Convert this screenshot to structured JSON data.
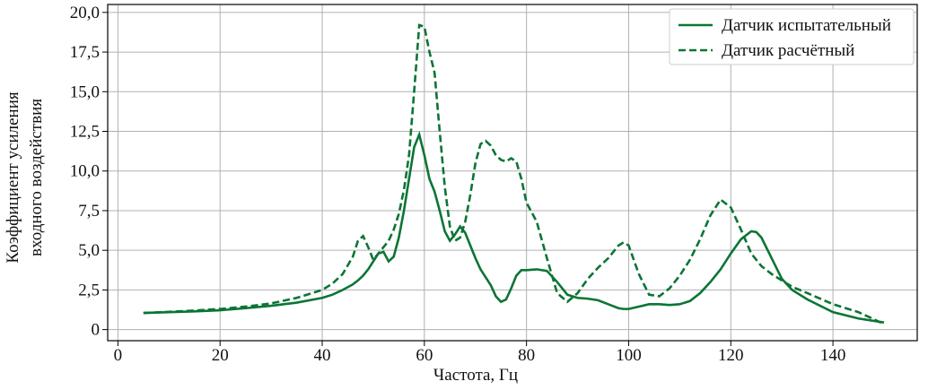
{
  "chart_data": {
    "type": "line",
    "x_label": "Частота, Гц",
    "y_label": [
      "Коэффициент усиления",
      "входного воздействия"
    ],
    "x": [
      5,
      10,
      15,
      20,
      25,
      30,
      35,
      40,
      42,
      44,
      46,
      47,
      48,
      49,
      50,
      51,
      52,
      53,
      54,
      55,
      56,
      57,
      58,
      59,
      60,
      61,
      62,
      63,
      64,
      65,
      66,
      67,
      68,
      69,
      70,
      71,
      72,
      73,
      74,
      75,
      76,
      77,
      78,
      79,
      80,
      82,
      84,
      86,
      88,
      90,
      92,
      94,
      96,
      98,
      99,
      100,
      102,
      104,
      106,
      108,
      110,
      112,
      114,
      116,
      118,
      120,
      122,
      124,
      125,
      126,
      128,
      130,
      132,
      135,
      140,
      145,
      150
    ],
    "series": [
      {
        "name": "Датчик испытательный",
        "color": "#0b7535",
        "dash": "solid",
        "values": [
          1.05,
          1.1,
          1.15,
          1.22,
          1.35,
          1.5,
          1.7,
          2.0,
          2.2,
          2.5,
          2.85,
          3.1,
          3.4,
          3.8,
          4.3,
          4.8,
          4.9,
          4.3,
          4.6,
          5.8,
          7.5,
          9.5,
          11.5,
          12.3,
          11.0,
          9.5,
          8.7,
          7.5,
          6.2,
          5.6,
          6.0,
          6.5,
          6.1,
          5.3,
          4.5,
          3.8,
          3.3,
          2.8,
          2.1,
          1.75,
          1.9,
          2.6,
          3.4,
          3.75,
          3.75,
          3.8,
          3.7,
          3.0,
          2.2,
          2.0,
          1.95,
          1.85,
          1.6,
          1.35,
          1.3,
          1.3,
          1.45,
          1.6,
          1.6,
          1.55,
          1.6,
          1.8,
          2.3,
          3.0,
          3.8,
          4.8,
          5.7,
          6.2,
          6.15,
          5.8,
          4.5,
          3.2,
          2.5,
          1.9,
          1.1,
          0.7,
          0.45
        ]
      },
      {
        "name": "Датчик расчётный",
        "color": "#0b7535",
        "dash": "dashed",
        "values": [
          1.05,
          1.12,
          1.2,
          1.3,
          1.45,
          1.65,
          2.0,
          2.5,
          2.9,
          3.5,
          4.6,
          5.6,
          5.9,
          5.2,
          4.4,
          4.8,
          5.2,
          5.6,
          6.3,
          7.3,
          8.8,
          11.0,
          15.0,
          19.2,
          19.1,
          17.5,
          16.2,
          12.5,
          9.0,
          6.5,
          5.6,
          5.8,
          6.8,
          8.5,
          10.5,
          11.7,
          11.9,
          11.6,
          11.0,
          10.7,
          10.6,
          10.8,
          10.6,
          9.5,
          8.0,
          6.8,
          4.5,
          2.3,
          1.75,
          2.3,
          3.2,
          3.9,
          4.5,
          5.3,
          5.5,
          5.3,
          3.5,
          2.2,
          2.1,
          2.6,
          3.4,
          4.4,
          5.7,
          7.2,
          8.2,
          7.7,
          6.3,
          4.8,
          4.4,
          4.0,
          3.5,
          3.1,
          2.7,
          2.3,
          1.6,
          1.1,
          0.35
        ]
      }
    ],
    "xlim": [
      -2,
      156.5
    ],
    "ylim": [
      -0.7,
      20.5
    ],
    "xticks": [
      0,
      20,
      40,
      60,
      80,
      100,
      120,
      140
    ],
    "yticks": [
      0,
      {
        "value": 2.5,
        "label": "2,5"
      },
      {
        "value": 5,
        "label": "5,0"
      },
      {
        "value": 7.5,
        "label": "7,5"
      },
      {
        "value": 10,
        "label": "10,0"
      },
      {
        "value": 12.5,
        "label": "12,5"
      },
      {
        "value": 15,
        "label": "15,0"
      },
      {
        "value": 17.5,
        "label": "17,5"
      },
      {
        "value": 20,
        "label": "20,0"
      }
    ],
    "grid": true,
    "legend": "upper right"
  }
}
